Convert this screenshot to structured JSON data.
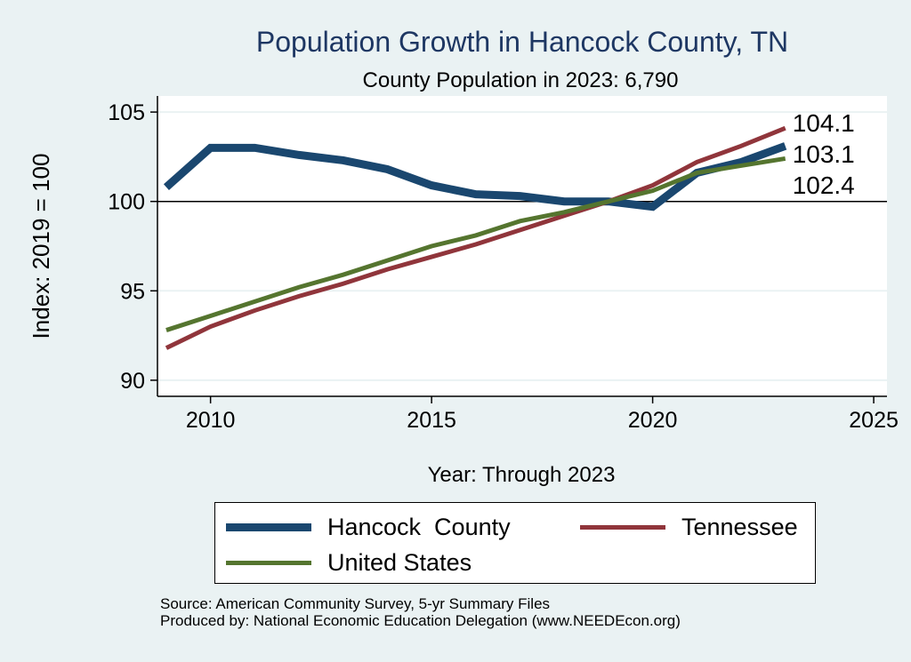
{
  "chart_data": {
    "type": "line",
    "title": "Population Growth in Hancock County, TN",
    "subtitle": "County Population in 2023: 6,790",
    "xlabel": "Year: Through 2023",
    "ylabel": "Index: 2019 = 100",
    "xlim": [
      2008.8,
      2025.3
    ],
    "ylim": [
      89.1,
      105.9
    ],
    "xticks": [
      2010,
      2015,
      2020,
      2025
    ],
    "yticks": [
      90,
      95,
      100,
      105
    ],
    "reference_line": 100,
    "grid": true,
    "x": [
      2009,
      2010,
      2011,
      2012,
      2013,
      2014,
      2015,
      2016,
      2017,
      2018,
      2019,
      2020,
      2021,
      2022,
      2023
    ],
    "series": [
      {
        "name": "Hancock  County",
        "color": "#1a476f",
        "width": 9,
        "values": [
          100.8,
          103.0,
          103.0,
          102.6,
          102.3,
          101.8,
          100.9,
          100.4,
          100.3,
          100.0,
          100.0,
          99.7,
          101.6,
          102.2,
          103.1
        ],
        "end_label": "103.1"
      },
      {
        "name": "Tennessee",
        "color": "#90353b",
        "width": 5,
        "values": [
          91.8,
          93.0,
          93.9,
          94.7,
          95.4,
          96.2,
          96.9,
          97.6,
          98.4,
          99.2,
          100.0,
          100.9,
          102.2,
          103.1,
          104.1
        ],
        "end_label": "104.1"
      },
      {
        "name": "United States",
        "color": "#55752f",
        "width": 5,
        "values": [
          92.8,
          93.6,
          94.4,
          95.2,
          95.9,
          96.7,
          97.5,
          98.1,
          98.9,
          99.4,
          100.0,
          100.6,
          101.6,
          102.0,
          102.4
        ],
        "end_label": "102.4"
      }
    ],
    "legend_position": "bottom"
  },
  "source": "Source: American Community Survey, 5-yr Summary Files",
  "producer": "Produced by: National Economic Education Delegation (www.NEEDEcon.org)"
}
